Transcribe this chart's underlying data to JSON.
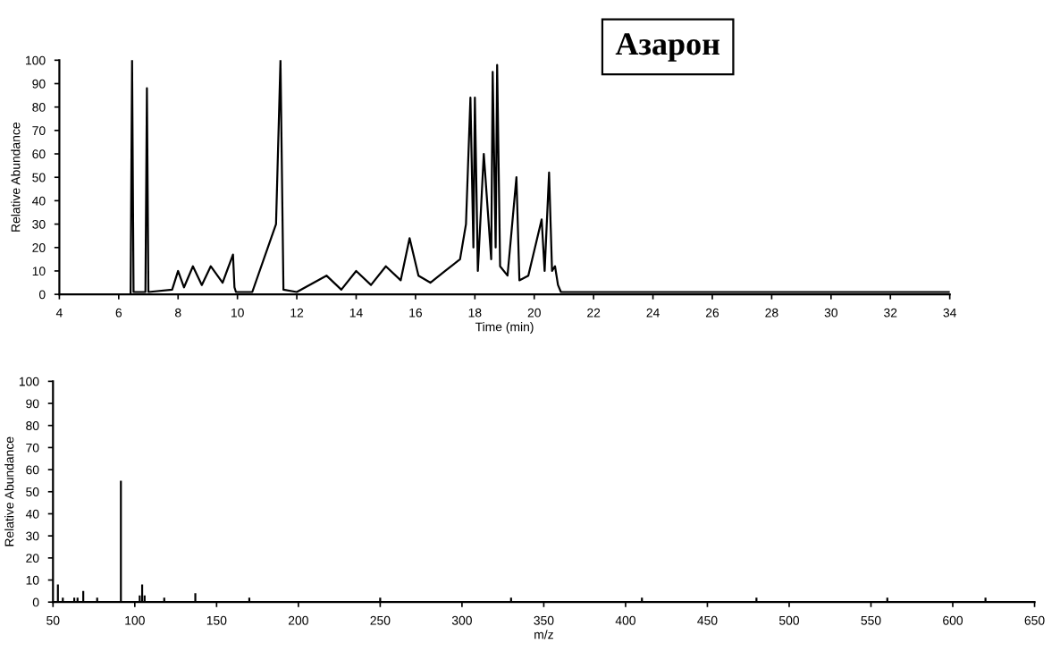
{
  "chart_data": [
    {
      "type": "line",
      "xlabel": "Time (min)",
      "ylabel": "Relative Abundance",
      "annotations": [
        "Азарон"
      ],
      "series": [
        {
          "color": "#000000",
          "x": [
            4.0,
            6.4,
            6.45,
            6.5,
            6.9,
            6.95,
            7.0,
            7.8,
            8.0,
            8.2,
            8.5,
            8.8,
            9.1,
            9.5,
            9.85,
            9.9,
            9.95,
            10.5,
            11.3,
            11.45,
            11.55,
            12.0,
            13.0,
            13.5,
            14.0,
            14.5,
            15.0,
            15.5,
            15.8,
            16.1,
            16.5,
            17.0,
            17.5,
            17.7,
            17.85,
            17.95,
            18.0,
            18.1,
            18.3,
            18.55,
            18.6,
            18.7,
            18.75,
            18.85,
            19.1,
            19.4,
            19.5,
            19.8,
            20.25,
            20.35,
            20.5,
            20.6,
            20.7,
            20.8,
            20.9,
            21.5,
            34.0
          ],
          "values": [
            0,
            0,
            100,
            1,
            1,
            88,
            1,
            2,
            10,
            3,
            12,
            4,
            12,
            5,
            17,
            3,
            1,
            1,
            30,
            100,
            2,
            1,
            8,
            2,
            10,
            4,
            12,
            6,
            24,
            8,
            5,
            10,
            15,
            30,
            84,
            20,
            84,
            10,
            60,
            15,
            95,
            20,
            98,
            12,
            8,
            50,
            6,
            8,
            32,
            10,
            52,
            10,
            12,
            4,
            1,
            1,
            1
          ]
        }
      ],
      "xlim": [
        4,
        34
      ],
      "xticks": [
        4,
        6,
        8,
        10,
        12,
        14,
        16,
        18,
        20,
        22,
        24,
        26,
        28,
        30,
        32,
        34
      ],
      "ylim": [
        0,
        100
      ],
      "yticks": [
        0,
        10,
        20,
        30,
        40,
        50,
        60,
        70,
        80,
        90,
        100
      ],
      "grid": false,
      "legend": false
    },
    {
      "type": "bar",
      "xlabel": "m/z",
      "ylabel": "Relative Abundance",
      "series": [
        {
          "color": "#000000",
          "x": [
            53,
            56,
            63,
            65,
            68.5,
            77,
            91.5,
            103,
            104.5,
            106,
            118,
            137,
            170,
            250,
            330,
            410,
            480,
            560,
            620
          ],
          "values": [
            8,
            2,
            2,
            2,
            5,
            2,
            55,
            3,
            8,
            3,
            2,
            4,
            2,
            2,
            2,
            2,
            2,
            2,
            2
          ]
        }
      ],
      "xlim": [
        50,
        650
      ],
      "xticks": [
        50,
        100,
        150,
        200,
        250,
        300,
        350,
        400,
        450,
        500,
        550,
        600,
        650
      ],
      "ylim": [
        0,
        100
      ],
      "yticks": [
        0,
        10,
        20,
        30,
        40,
        50,
        60,
        70,
        80,
        90,
        100
      ],
      "grid": false,
      "legend": false
    }
  ]
}
